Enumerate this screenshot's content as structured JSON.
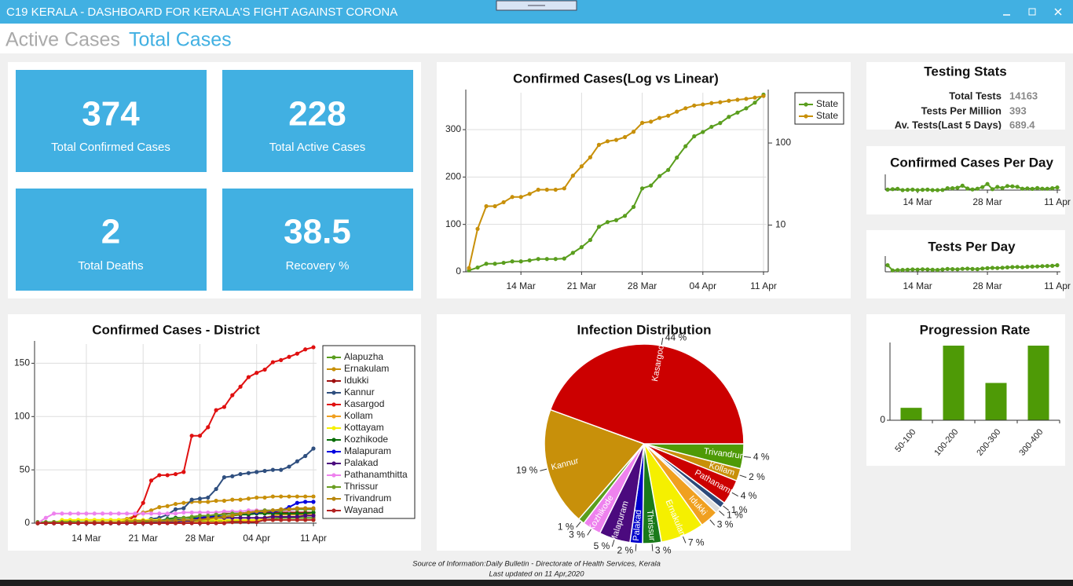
{
  "header": {
    "title": "C19 KERALA - DASHBOARD FOR KERALA'S FIGHT AGAINST CORONA"
  },
  "tabs": [
    "Active Cases",
    "Total Cases"
  ],
  "kpis": [
    {
      "value": 374,
      "label": "Total Confirmed Cases"
    },
    {
      "value": 228,
      "label": "Total Active Cases"
    },
    {
      "value": 2,
      "label": "Total Deaths"
    },
    {
      "value": 38.5,
      "label": "Recovery %"
    }
  ],
  "testing_stats": {
    "title": "Testing Stats",
    "rows": [
      {
        "label": "Total Tests",
        "value": 14163
      },
      {
        "label": "Tests Per Million",
        "value": 393
      },
      {
        "label": "Av. Tests(Last 5 Days)",
        "value": 689.4
      }
    ]
  },
  "footer": {
    "source": "Source of Information:Daily Bulletin - Directorate of Health Services, Kerala",
    "updated": "Last updated on 11 Apr,2020"
  },
  "chart_data": [
    {
      "type": "line",
      "title": "Confirmed Cases(Log vs Linear)",
      "categories": [
        null,
        null,
        null,
        null,
        null,
        null,
        "14 Mar",
        null,
        null,
        null,
        null,
        null,
        null,
        "21 Mar",
        null,
        null,
        null,
        null,
        null,
        null,
        "28 Mar",
        null,
        null,
        null,
        null,
        null,
        null,
        "04 Apr",
        null,
        null,
        null,
        null,
        null,
        null,
        "11 Apr"
      ],
      "series": [
        {
          "name": "State",
          "color": "#5a9e1e",
          "values": [
            3,
            9,
            17,
            17,
            19,
            22,
            22,
            24,
            27,
            27,
            27,
            28,
            40,
            52,
            67,
            95,
            105,
            109,
            118,
            137,
            176,
            182,
            202,
            215,
            241,
            265,
            286,
            295,
            306,
            314,
            327,
            336,
            345,
            357,
            374
          ]
        },
        {
          "name": "State",
          "color": "#c8900a",
          "axis": "y2",
          "values": [
            3,
            9,
            17,
            17,
            19,
            22,
            22,
            24,
            27,
            27,
            27,
            28,
            40,
            52,
            67,
            95,
            105,
            109,
            118,
            137,
            176,
            182,
            202,
            215,
            241,
            265,
            286,
            295,
            306,
            314,
            327,
            336,
            345,
            357,
            374
          ]
        }
      ],
      "ylim": [
        0,
        378
      ],
      "yticks": [
        0,
        100,
        200,
        300
      ],
      "y2lim": [
        2.7,
        410
      ],
      "y2ticks": [
        10,
        100
      ],
      "y2scale": "log",
      "grid": true,
      "legend": "upper-right"
    },
    {
      "type": "line",
      "title": "Confirmed Cases Per Day",
      "categories": [
        null,
        null,
        null,
        null,
        null,
        null,
        "14 Mar",
        null,
        null,
        null,
        null,
        null,
        null,
        null,
        null,
        null,
        null,
        null,
        null,
        null,
        "28 Mar",
        null,
        null,
        null,
        null,
        null,
        null,
        null,
        null,
        null,
        null,
        null,
        null,
        null,
        "11 Apr"
      ],
      "color": "#5a9e1e",
      "values": [
        3,
        6,
        8,
        0,
        2,
        3,
        0,
        2,
        3,
        0,
        0,
        1,
        12,
        12,
        15,
        28,
        10,
        4,
        9,
        19,
        39,
        6,
        20,
        13,
        26,
        24,
        21,
        9,
        11,
        8,
        13,
        9,
        9,
        12,
        17
      ],
      "ylim": [
        0,
        80
      ]
    },
    {
      "type": "line",
      "title": "Tests Per Day",
      "categories": [
        null,
        null,
        null,
        null,
        null,
        null,
        "14 Mar",
        null,
        null,
        null,
        null,
        null,
        null,
        null,
        null,
        null,
        null,
        null,
        null,
        null,
        "28 Mar",
        null,
        null,
        null,
        null,
        null,
        null,
        null,
        null,
        null,
        null,
        null,
        null,
        null,
        "11 Apr"
      ],
      "color": "#5a9e1e",
      "values": [
        420,
        90,
        110,
        120,
        130,
        150,
        140,
        160,
        150,
        130,
        120,
        150,
        180,
        170,
        160,
        190,
        200,
        180,
        170,
        210,
        230,
        250,
        240,
        260,
        280,
        300,
        310,
        290,
        320,
        330,
        340,
        360,
        370,
        380,
        420
      ],
      "ylim": [
        0,
        800
      ]
    },
    {
      "type": "line",
      "title": "Confirmed Cases - District",
      "categories": [
        null,
        null,
        null,
        null,
        null,
        null,
        "14 Mar",
        null,
        null,
        null,
        null,
        null,
        null,
        "21 Mar",
        null,
        null,
        null,
        null,
        null,
        null,
        "28 Mar",
        null,
        null,
        null,
        null,
        null,
        null,
        "04 Apr",
        null,
        null,
        null,
        null,
        null,
        null,
        "11 Apr"
      ],
      "series": [
        {
          "name": "Alapuzha",
          "color": "#5a9e1e",
          "values": [
            1,
            1,
            1,
            1,
            1,
            1,
            1,
            1,
            1,
            1,
            1,
            1,
            2,
            2,
            2,
            2,
            2,
            2,
            2,
            2,
            2,
            2,
            2,
            2,
            2,
            2,
            2,
            3,
            3,
            4,
            5,
            5,
            5,
            5,
            5
          ]
        },
        {
          "name": "Ernakulam",
          "color": "#c8900a",
          "values": [
            0,
            0,
            1,
            2,
            2,
            3,
            3,
            3,
            3,
            3,
            3,
            4,
            7,
            10,
            12,
            15,
            16,
            18,
            19,
            20,
            20,
            20,
            21,
            21,
            22,
            22,
            23,
            24,
            24,
            25,
            25,
            25,
            25,
            25,
            25
          ]
        },
        {
          "name": "Idukki",
          "color": "#a01010",
          "values": [
            0,
            0,
            0,
            0,
            0,
            0,
            0,
            0,
            0,
            0,
            0,
            0,
            0,
            1,
            1,
            1,
            1,
            2,
            2,
            3,
            5,
            6,
            7,
            9,
            9,
            9,
            10,
            10,
            10,
            10,
            10,
            10,
            10,
            10,
            10
          ]
        },
        {
          "name": "Kannur",
          "color": "#2f4f7f",
          "values": [
            0,
            0,
            0,
            0,
            0,
            0,
            0,
            0,
            0,
            0,
            0,
            0,
            1,
            2,
            4,
            5,
            8,
            13,
            14,
            22,
            23,
            24,
            32,
            43,
            44,
            46,
            47,
            48,
            49,
            50,
            50,
            53,
            58,
            63,
            70
          ]
        },
        {
          "name": "Kasargod",
          "color": "#e01010",
          "values": [
            0,
            0,
            0,
            0,
            0,
            0,
            0,
            0,
            0,
            0,
            0,
            1,
            7,
            19,
            40,
            45,
            45,
            46,
            48,
            82,
            82,
            90,
            106,
            109,
            120,
            128,
            137,
            141,
            144,
            151,
            153,
            156,
            159,
            163,
            165
          ]
        },
        {
          "name": "Kollam",
          "color": "#f0a020",
          "values": [
            0,
            0,
            0,
            0,
            0,
            0,
            0,
            0,
            0,
            0,
            0,
            0,
            0,
            0,
            0,
            0,
            0,
            0,
            0,
            1,
            1,
            1,
            1,
            1,
            1,
            1,
            2,
            2,
            5,
            7,
            8,
            8,
            8,
            8,
            8
          ]
        },
        {
          "name": "Kottayam",
          "color": "#f5f000",
          "values": [
            0,
            0,
            0,
            3,
            3,
            3,
            3,
            3,
            3,
            3,
            3,
            3,
            3,
            3,
            3,
            3,
            3,
            3,
            3,
            3,
            3,
            3,
            3,
            3,
            3,
            3,
            3,
            3,
            3,
            3,
            3,
            3,
            3,
            3,
            3
          ]
        },
        {
          "name": "Kozhikode",
          "color": "#0a6e0a",
          "values": [
            0,
            0,
            0,
            0,
            0,
            0,
            0,
            0,
            0,
            0,
            0,
            0,
            1,
            1,
            2,
            2,
            4,
            5,
            5,
            5,
            5,
            5,
            6,
            6,
            7,
            8,
            8,
            9,
            9,
            9,
            9,
            9,
            9,
            9,
            10
          ]
        },
        {
          "name": "Malapuram",
          "color": "#0000e0",
          "values": [
            0,
            0,
            0,
            0,
            0,
            0,
            0,
            0,
            0,
            0,
            0,
            0,
            2,
            2,
            2,
            2,
            3,
            3,
            3,
            3,
            5,
            6,
            7,
            8,
            9,
            9,
            10,
            10,
            11,
            11,
            12,
            15,
            19,
            20,
            20
          ]
        },
        {
          "name": "Palakad",
          "color": "#4b0a7e",
          "values": [
            0,
            0,
            0,
            0,
            0,
            0,
            0,
            0,
            0,
            0,
            0,
            0,
            0,
            0,
            0,
            1,
            1,
            1,
            2,
            2,
            4,
            5,
            5,
            5,
            5,
            5,
            5,
            5,
            5,
            6,
            6,
            6,
            6,
            7,
            7
          ]
        },
        {
          "name": "Pathanamthitta",
          "color": "#ee82ee",
          "values": [
            0,
            5,
            9,
            9,
            9,
            9,
            9,
            9,
            9,
            9,
            9,
            9,
            9,
            9,
            9,
            9,
            9,
            9,
            10,
            10,
            10,
            10,
            10,
            11,
            11,
            11,
            12,
            12,
            12,
            12,
            12,
            12,
            13,
            13,
            13
          ]
        },
        {
          "name": "Thrissur",
          "color": "#6b9e23",
          "values": [
            0,
            0,
            1,
            1,
            1,
            1,
            1,
            1,
            1,
            1,
            1,
            1,
            1,
            2,
            2,
            2,
            3,
            4,
            5,
            6,
            7,
            7,
            8,
            8,
            9,
            9,
            10,
            11,
            12,
            12,
            12,
            13,
            13,
            13,
            13
          ]
        },
        {
          "name": "Trivandrum",
          "color": "#b8860b",
          "values": [
            0,
            0,
            0,
            0,
            0,
            0,
            1,
            1,
            1,
            1,
            1,
            2,
            2,
            2,
            2,
            2,
            2,
            2,
            3,
            3,
            3,
            4,
            5,
            6,
            7,
            9,
            10,
            11,
            11,
            12,
            13,
            13,
            14,
            14,
            14
          ]
        },
        {
          "name": "Wayanad",
          "color": "#b22222",
          "values": [
            0,
            0,
            0,
            0,
            0,
            0,
            0,
            0,
            0,
            0,
            0,
            0,
            0,
            0,
            0,
            0,
            0,
            0,
            0,
            0,
            0,
            0,
            0,
            0,
            1,
            1,
            1,
            1,
            3,
            3,
            3,
            3,
            3,
            3,
            3
          ]
        }
      ],
      "ylim": [
        0,
        168
      ],
      "yticks": [
        0,
        50,
        100,
        150
      ],
      "grid": true,
      "legend": "right"
    },
    {
      "type": "pie",
      "title": "Infection Distribution",
      "categories": [
        "Trivandrum",
        "Kollam",
        "Pathanamth",
        null,
        null,
        "Idukki",
        "Ernakulam",
        "Thrissur",
        "Palakad",
        "Malapuram",
        "Kozhikode",
        null,
        "Kannur",
        "Kasargod"
      ],
      "values": [
        4,
        2,
        4,
        1,
        1,
        3,
        7,
        3,
        2,
        5,
        3,
        1,
        19,
        44
      ],
      "value_labels": [
        "4 %",
        "2 %",
        "4 %",
        "1 %",
        "1 %",
        "3 %",
        "7 %",
        "3 %",
        "2 %",
        "5 %",
        "3 %",
        "1 %",
        "19 %",
        "44 %"
      ],
      "colors": [
        "#4e9a06",
        "#c8900a",
        "#cc0000",
        "#2c4a7a",
        "#dddddd",
        "#f0a020",
        "#f5f000",
        "#1a7a1a",
        "#0000cc",
        "#4b0a7e",
        "#ee82ee",
        "#5a9e1e",
        "#c8900a",
        "#cc0000"
      ]
    },
    {
      "type": "bar",
      "title": "Progression Rate",
      "categories": [
        "50-100",
        "100-200",
        "200-300",
        "300-400"
      ],
      "values": [
        1,
        6,
        3,
        6
      ],
      "color": "#4e9a06",
      "ylim": [
        0,
        6
      ],
      "yticks": [
        0
      ]
    }
  ]
}
